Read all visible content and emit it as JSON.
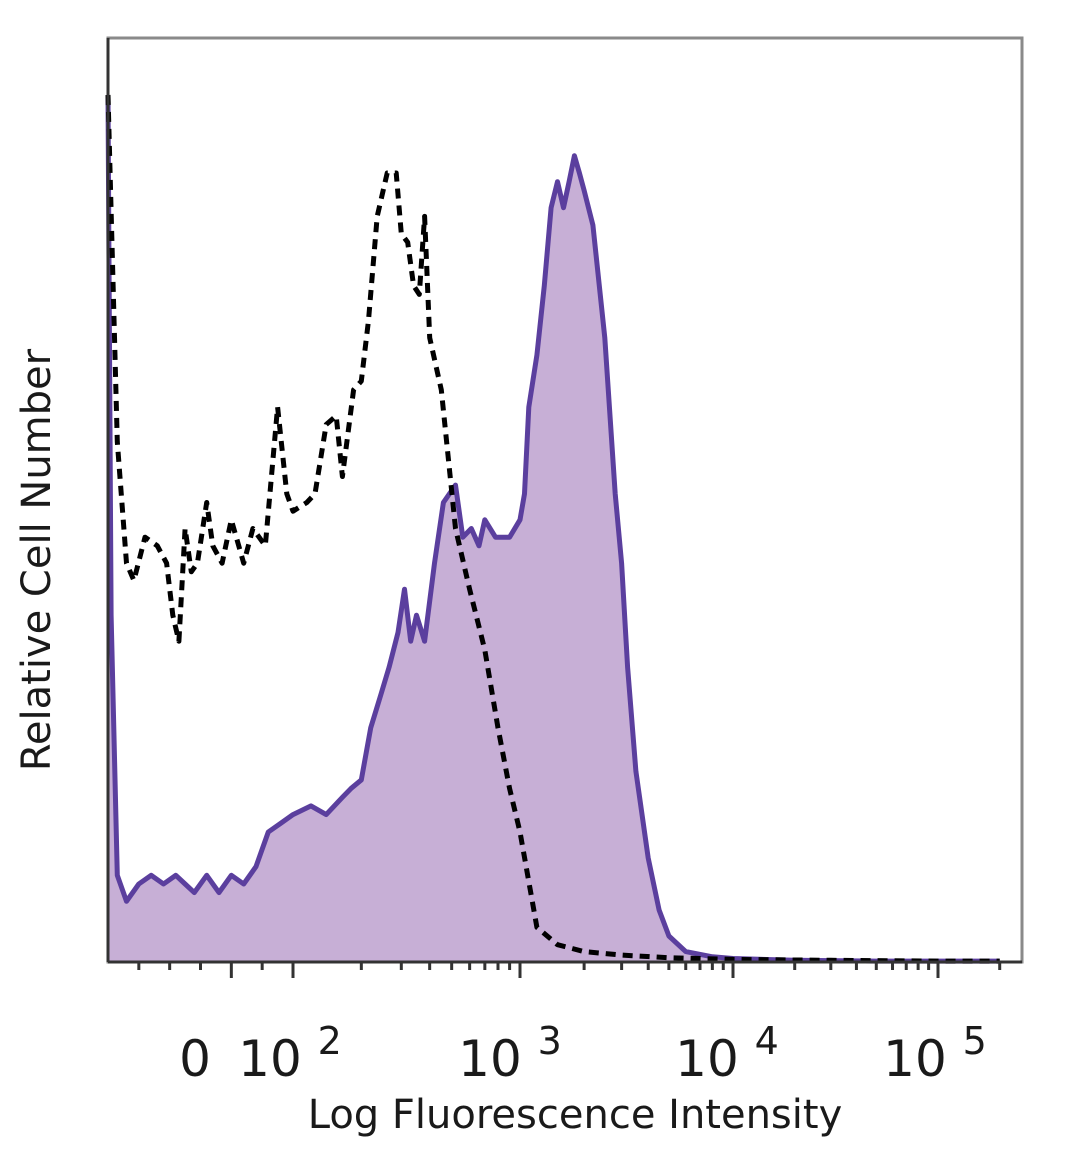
{
  "chart_data": {
    "type": "area",
    "title": "",
    "xlabel": "Log Fluorescence Intensity",
    "ylabel": "Relative Cell Number",
    "x_scale": "biexponential (log above 10^2, linear near 0)",
    "xlim": [
      -200,
      200000
    ],
    "ylim": [
      0,
      100
    ],
    "grid": false,
    "legend": "none",
    "x_tick_labels": [
      {
        "value": 0,
        "base": "0",
        "exp": ""
      },
      {
        "value": 100,
        "base": "10",
        "exp": "2"
      },
      {
        "value": 1000,
        "base": "10",
        "exp": "3"
      },
      {
        "value": 10000,
        "base": "10",
        "exp": "4"
      },
      {
        "value": 100000,
        "base": "10",
        "exp": "5"
      }
    ],
    "series": [
      {
        "style": "dashed",
        "color": "#000000",
        "fill": "none",
        "points": [
          [
            -200,
            100
          ],
          [
            -185,
            60
          ],
          [
            -170,
            46
          ],
          [
            -158,
            44
          ],
          [
            -140,
            49
          ],
          [
            -120,
            48
          ],
          [
            -105,
            46
          ],
          [
            -95,
            40
          ],
          [
            -85,
            37
          ],
          [
            -75,
            50
          ],
          [
            -65,
            45
          ],
          [
            -55,
            46
          ],
          [
            -40,
            53
          ],
          [
            -30,
            48
          ],
          [
            -15,
            46
          ],
          [
            0,
            51
          ],
          [
            20,
            46
          ],
          [
            35,
            50
          ],
          [
            55,
            48
          ],
          [
            75,
            64
          ],
          [
            90,
            54
          ],
          [
            100,
            52
          ],
          [
            115,
            53
          ],
          [
            125,
            54
          ],
          [
            140,
            62
          ],
          [
            155,
            63
          ],
          [
            165,
            56
          ],
          [
            185,
            66
          ],
          [
            200,
            67
          ],
          [
            215,
            74
          ],
          [
            235,
            86
          ],
          [
            260,
            91
          ],
          [
            285,
            91
          ],
          [
            300,
            84
          ],
          [
            320,
            83
          ],
          [
            340,
            78
          ],
          [
            360,
            77
          ],
          [
            380,
            86
          ],
          [
            400,
            72
          ],
          [
            450,
            66
          ],
          [
            520,
            50
          ],
          [
            600,
            43
          ],
          [
            700,
            36
          ],
          [
            800,
            27
          ],
          [
            900,
            20
          ],
          [
            1000,
            15
          ],
          [
            1200,
            4
          ],
          [
            1500,
            2
          ],
          [
            2000,
            1.2
          ],
          [
            3000,
            0.8
          ],
          [
            5000,
            0.5
          ],
          [
            10000,
            0.3
          ],
          [
            30000,
            0.2
          ],
          [
            100000,
            0.1
          ],
          [
            200000,
            0.1
          ]
        ]
      },
      {
        "style": "solid",
        "color": "#5b3f9e",
        "fill": "#c7afd6",
        "points": [
          [
            -200,
            100
          ],
          [
            -195,
            40
          ],
          [
            -185,
            10
          ],
          [
            -170,
            7
          ],
          [
            -150,
            9
          ],
          [
            -130,
            10
          ],
          [
            -110,
            9
          ],
          [
            -90,
            10
          ],
          [
            -75,
            9
          ],
          [
            -60,
            8
          ],
          [
            -40,
            10
          ],
          [
            -20,
            8
          ],
          [
            0,
            10
          ],
          [
            20,
            9
          ],
          [
            40,
            11
          ],
          [
            60,
            15
          ],
          [
            80,
            16
          ],
          [
            100,
            17
          ],
          [
            120,
            18
          ],
          [
            140,
            17
          ],
          [
            165,
            19
          ],
          [
            180,
            20
          ],
          [
            200,
            21
          ],
          [
            220,
            27
          ],
          [
            245,
            31
          ],
          [
            265,
            34
          ],
          [
            290,
            38
          ],
          [
            310,
            43
          ],
          [
            330,
            37
          ],
          [
            350,
            40
          ],
          [
            380,
            37
          ],
          [
            420,
            46
          ],
          [
            460,
            53
          ],
          [
            520,
            55
          ],
          [
            560,
            49
          ],
          [
            610,
            50
          ],
          [
            660,
            48
          ],
          [
            700,
            51
          ],
          [
            780,
            49
          ],
          [
            850,
            49
          ],
          [
            900,
            49
          ],
          [
            1000,
            51
          ],
          [
            1050,
            54
          ],
          [
            1100,
            64
          ],
          [
            1200,
            70
          ],
          [
            1300,
            78
          ],
          [
            1400,
            87
          ],
          [
            1500,
            90
          ],
          [
            1600,
            87
          ],
          [
            1700,
            90
          ],
          [
            1800,
            93
          ],
          [
            1900,
            91
          ],
          [
            2000,
            89
          ],
          [
            2200,
            85
          ],
          [
            2500,
            72
          ],
          [
            2800,
            54
          ],
          [
            3000,
            46
          ],
          [
            3200,
            34
          ],
          [
            3500,
            22
          ],
          [
            4000,
            12
          ],
          [
            4500,
            6
          ],
          [
            5000,
            3
          ],
          [
            6000,
            1.2
          ],
          [
            8000,
            0.6
          ],
          [
            10000,
            0.4
          ],
          [
            20000,
            0.2
          ],
          [
            50000,
            0.1
          ],
          [
            100000,
            0.1
          ],
          [
            200000,
            0.1
          ]
        ]
      }
    ]
  }
}
